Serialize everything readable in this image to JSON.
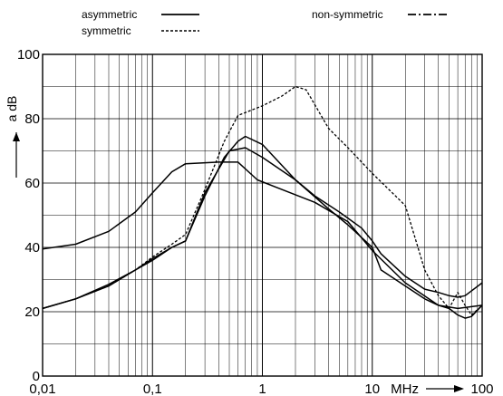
{
  "chart_data": {
    "type": "line",
    "title": "",
    "x_scale": "log",
    "xlim": [
      0.01,
      100
    ],
    "ylim": [
      0,
      100
    ],
    "grid": true,
    "xlabel": "MHz",
    "ylabel": "a dB",
    "x_tick_labels": [
      {
        "value": 0.01,
        "label": "0,01"
      },
      {
        "value": 0.1,
        "label": "0,1"
      },
      {
        "value": 1,
        "label": "1"
      },
      {
        "value": 10,
        "label": "10"
      },
      {
        "value": 100,
        "label": "100"
      }
    ],
    "y_tick_labels": [
      {
        "value": 0,
        "label": "0"
      },
      {
        "value": 20,
        "label": "20"
      },
      {
        "value": 40,
        "label": "40"
      },
      {
        "value": 60,
        "label": "60"
      },
      {
        "value": 80,
        "label": "80"
      },
      {
        "value": 100,
        "label": "100"
      }
    ],
    "legend": {
      "placement": "top",
      "entries": [
        {
          "name": "asymmetric",
          "style": "solid"
        },
        {
          "name": "symmetric",
          "style": "dotted"
        },
        {
          "name": "non-symmetric",
          "style": "dashdot"
        }
      ]
    },
    "series": [
      {
        "style": "solid",
        "x": [
          0.01,
          0.02,
          0.04,
          0.07,
          0.1,
          0.15,
          0.2,
          0.4,
          0.6,
          0.9,
          1.5,
          3,
          6,
          10,
          20,
          40,
          60,
          100
        ],
        "y": [
          39.5,
          41,
          45,
          51,
          57,
          63.5,
          66,
          66.5,
          66.5,
          61,
          58,
          54,
          48,
          39,
          29,
          22,
          21,
          22
        ]
      },
      {
        "style": "solid",
        "x": [
          0.01,
          0.02,
          0.04,
          0.07,
          0.1,
          0.15,
          0.2,
          0.3,
          0.45,
          0.6,
          0.7,
          1,
          2,
          3,
          5,
          8,
          10,
          12,
          20,
          30,
          40,
          50,
          60,
          70,
          100
        ],
        "y": [
          21,
          24,
          28,
          33,
          36,
          40,
          42,
          56,
          68,
          73,
          74.5,
          72,
          61,
          56,
          51,
          46,
          42,
          38,
          31,
          27,
          26,
          25,
          24.5,
          25,
          29
        ]
      },
      {
        "style": "solid",
        "x": [
          0.01,
          0.02,
          0.04,
          0.07,
          0.1,
          0.15,
          0.2,
          0.3,
          0.5,
          0.7,
          1,
          2,
          4,
          6,
          10,
          12,
          20,
          30,
          40,
          50,
          60,
          70,
          80,
          100
        ],
        "y": [
          21,
          24,
          28.5,
          33,
          36.5,
          40,
          42,
          57,
          70,
          71,
          68,
          61,
          52,
          47,
          40,
          33,
          28,
          24,
          22,
          21,
          19,
          18,
          18.5,
          22
        ]
      },
      {
        "style": "dotted",
        "x": [
          0.01,
          0.02,
          0.04,
          0.07,
          0.1,
          0.15,
          0.2,
          0.3,
          0.45,
          0.6,
          1,
          1.5,
          2,
          2.5,
          4,
          6,
          10,
          20,
          25,
          30,
          40,
          50,
          60,
          70,
          80,
          100
        ],
        "y": [
          21,
          24,
          28,
          33,
          37,
          41,
          44,
          58,
          73,
          81,
          84,
          87,
          90,
          89,
          77,
          71,
          63,
          53,
          42,
          33,
          25,
          21,
          26,
          22,
          19,
          22
        ]
      }
    ]
  }
}
